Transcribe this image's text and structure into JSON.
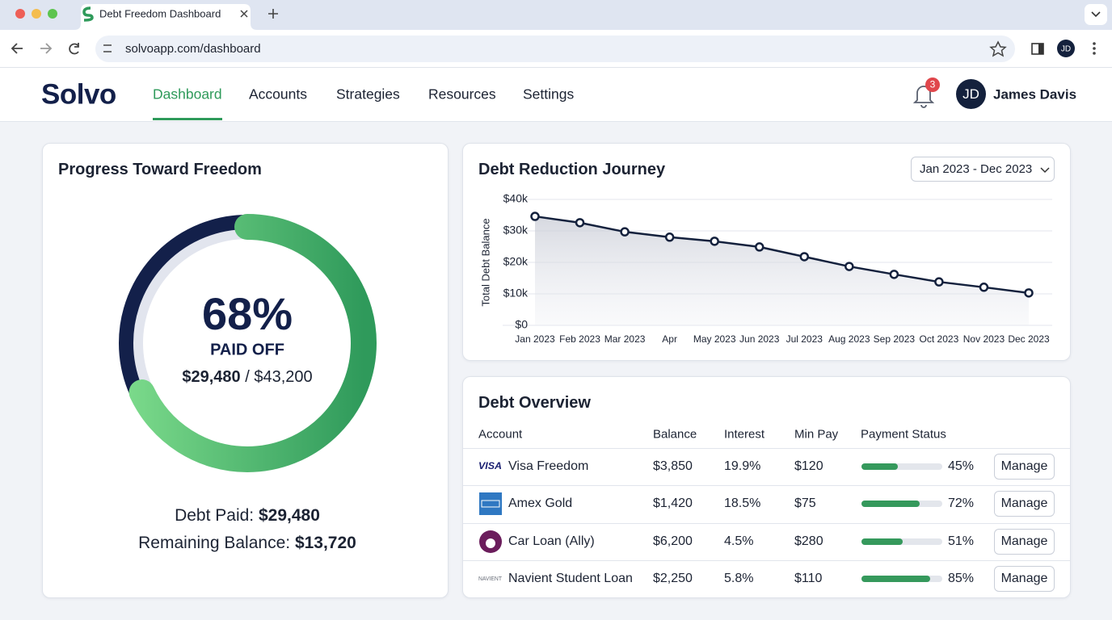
{
  "browser": {
    "tab_title": "Debt Freedom Dashboard",
    "url": "solvoapp.com/dashboard",
    "profile_initials": "JD"
  },
  "nav": {
    "logo": "Solvo",
    "items": [
      "Dashboard",
      "Accounts",
      "Strategies",
      "Resources",
      "Settings"
    ],
    "active": 0,
    "notification_count": 3,
    "user_initials": "JD",
    "user_name": "James Davis"
  },
  "progress": {
    "title": "Progress Toward Freedom",
    "percent": 68,
    "percent_label": "68%",
    "caption": "PAID OFF",
    "paid": "$29,480",
    "separator": "/",
    "total": "$43,200",
    "summary": [
      {
        "label": "Debt Paid:",
        "value": "$29,480"
      },
      {
        "label": "Remaining Balance:",
        "value": "$13,720"
      }
    ]
  },
  "chart_data": {
    "type": "line",
    "title": "Debt Reduction Journey",
    "date_range": "Jan 2023 - Dec 2023",
    "y_label": "Total Debt Balance",
    "categories": [
      "Jan 2023",
      "Feb 2023",
      "Mar 2023",
      "Apr",
      "May 2023",
      "Jun 2023",
      "Jul 2023",
      "Aug 2023",
      "Sep 2023",
      "Oct 2023",
      "Nov 2023",
      "Dec 2023"
    ],
    "values": [
      34600,
      32600,
      29700,
      28000,
      26700,
      24900,
      21800,
      18700,
      16200,
      13800,
      12100,
      10300
    ],
    "color": "#14213d",
    "ylim": [
      0,
      40000
    ],
    "yticks": [
      {
        "value": 0,
        "label": "$0"
      },
      {
        "value": 10000,
        "label": "$10k"
      },
      {
        "value": 20000,
        "label": "$20k"
      },
      {
        "value": 30000,
        "label": "$30k"
      },
      {
        "value": 40000,
        "label": "$40k"
      }
    ],
    "grid": true
  },
  "table": {
    "title": "Debt Overview",
    "columns": [
      "Account",
      "Balance",
      "Interest",
      "Min Pay",
      "Payment Status"
    ],
    "rows": [
      {
        "logo": "VISA",
        "account": "Visa Freedom",
        "balance": "$3,850",
        "interest": "19.9%",
        "min_pay": "$120",
        "progress": 45,
        "progress_label": "45%",
        "action": "Manage"
      },
      {
        "account": "Amex Gold",
        "balance": "$1,420",
        "interest": "18.5%",
        "min_pay": "$75",
        "progress": 72,
        "progress_label": "72%",
        "action": "Manage"
      },
      {
        "account": "Car Loan (Ally)",
        "balance": "$6,200",
        "interest": "4.5%",
        "min_pay": "$280",
        "progress": 51,
        "progress_label": "51%",
        "action": "Manage"
      },
      {
        "logo": "NAVIENT",
        "account": "Navient Student Loan",
        "balance": "$2,250",
        "interest": "5.8%",
        "min_pay": "$110",
        "progress": 85,
        "progress_label": "85%",
        "action": "Manage"
      }
    ]
  }
}
